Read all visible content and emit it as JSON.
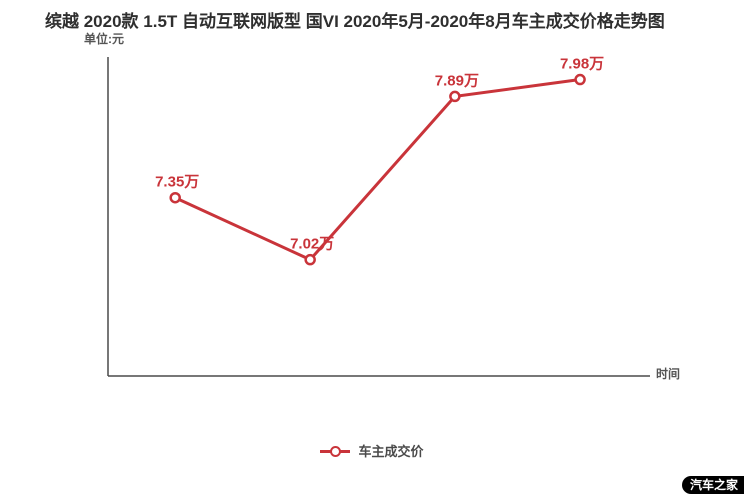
{
  "title": "缤越 2020款 1.5T 自动互联网版型 国VI 2020年5月-2020年8月车主成交价格走势图",
  "unit_label": "单位:元",
  "xaxis_label": "时间",
  "legend": {
    "label": "车主成交价"
  },
  "watermark": "汽车之家",
  "colors": {
    "line": "#c9343a",
    "point_fill": "#ffffff",
    "label": "#c9343a",
    "axis": "#4a4a4a",
    "title_text": "#2f2f2f",
    "muted_text": "#555555"
  },
  "chart_data": {
    "type": "line",
    "title": "缤越 2020款 1.5T 自动互联网版型 国VI 2020年5月-2020年8月车主成交价格走势图",
    "xlabel": "时间",
    "ylabel": "单位:元",
    "ylim": [
      6.4,
      8.1
    ],
    "grid": false,
    "legend_position": "bottom",
    "series": [
      {
        "name": "车主成交价",
        "points": [
          {
            "label": "7.35万",
            "value": 7.35,
            "x_frac": 0.124
          },
          {
            "label": "7.02万",
            "value": 7.02,
            "x_frac": 0.373
          },
          {
            "label": "7.89万",
            "value": 7.89,
            "x_frac": 0.64
          },
          {
            "label": "7.98万",
            "value": 7.98,
            "x_frac": 0.871
          }
        ]
      }
    ]
  }
}
